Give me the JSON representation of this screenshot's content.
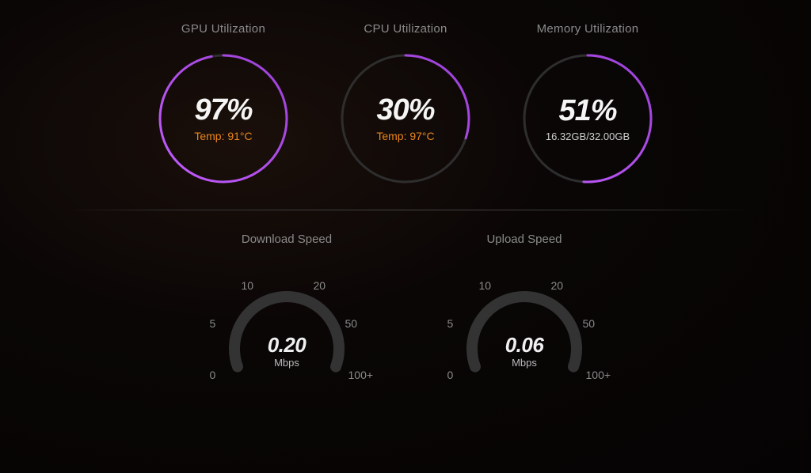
{
  "colors": {
    "title_text": "#8a8a8a",
    "value_text": "#f5f5f5",
    "accent_orange": "#e8861c",
    "ring_track": "#2a2a2a",
    "ring_progress": "#9b3fd6",
    "ring_progress_light": "#c45cff",
    "arc_track": "#3a3a3a",
    "background": "#050303"
  },
  "top_gauges": [
    {
      "title": "GPU Utilization",
      "value_text": "97%",
      "percent": 97,
      "subtitle": "Temp: 91°C",
      "subtitle_class": "sub-orange"
    },
    {
      "title": "CPU Utilization",
      "value_text": "30%",
      "percent": 30,
      "subtitle": "Temp: 97°C",
      "subtitle_class": "sub-orange"
    },
    {
      "title": "Memory Utilization",
      "value_text": "51%",
      "percent": 51,
      "subtitle": "16.32GB/32.00GB",
      "subtitle_class": "sub-white"
    }
  ],
  "bottom_gauges": [
    {
      "title": "Download Speed",
      "value_text": "0.20",
      "unit": "Mbps",
      "ticks": [
        "0",
        "5",
        "10",
        "20",
        "50",
        "100+"
      ]
    },
    {
      "title": "Upload Speed",
      "value_text": "0.06",
      "unit": "Mbps",
      "ticks": [
        "0",
        "5",
        "10",
        "20",
        "50",
        "100+"
      ]
    }
  ],
  "ring_style": {
    "radius": 80,
    "stroke_width": 3,
    "track_color": "#2e2e2e"
  },
  "arc_style": {
    "radius": 66,
    "stroke_width": 14,
    "track_color": "#333333",
    "start_angle_deg": 200,
    "end_angle_deg": -20
  }
}
